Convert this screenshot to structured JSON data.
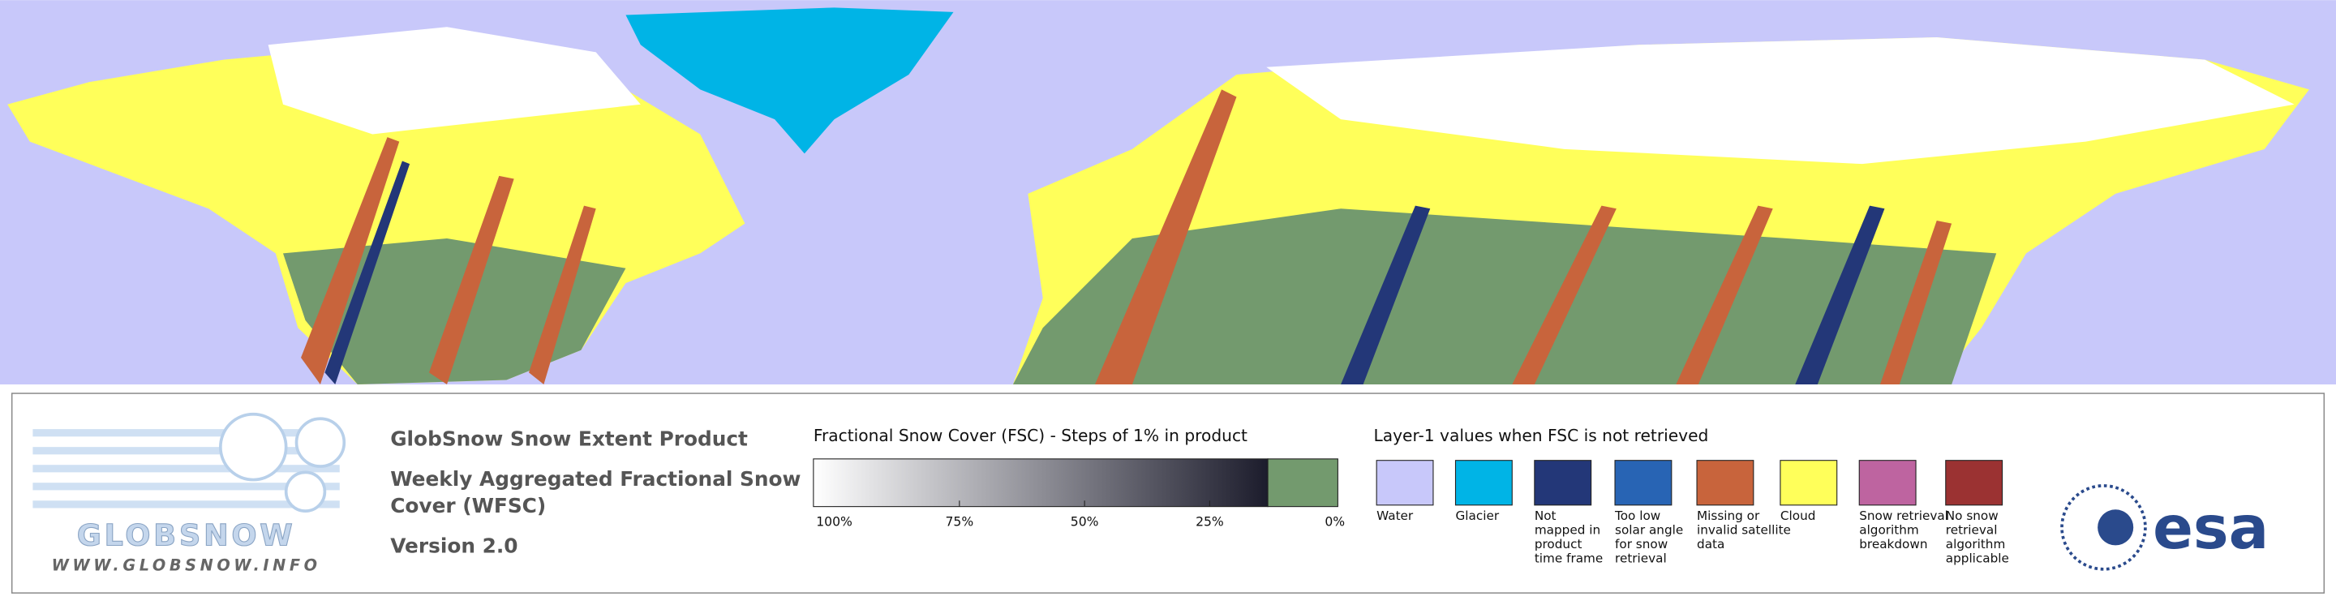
{
  "logo": {
    "name": "GLOBSNOW",
    "url": "WWW.GLOBSNOW.INFO"
  },
  "header": {
    "product": "GlobSnow Snow Extent Product",
    "subtitle_lines": [
      "Weekly Aggregated Fractional Snow",
      "Cover (WFSC)"
    ],
    "version": "Version 2.0"
  },
  "colorbar": {
    "title": "Fractional Snow Cover (FSC) - Steps of 1% in product",
    "ticks": [
      "100%",
      "75%",
      "50%",
      "25%",
      "0%"
    ],
    "start_color": "#ffffff",
    "end_color": "#1c1c2c",
    "zero_color": "#739a6e"
  },
  "layer1": {
    "title": "Layer-1 values when FSC is not retrieved",
    "items": [
      {
        "lines": [
          "Water"
        ],
        "color": "#c8c8fa"
      },
      {
        "lines": [
          "Glacier"
        ],
        "color": "#00b4e6"
      },
      {
        "lines": [
          "Not",
          "mapped in",
          "product",
          "time frame"
        ],
        "color": "#233778"
      },
      {
        "lines": [
          "Too low",
          "solar angle",
          "for snow",
          "retrieval"
        ],
        "color": "#2864b4"
      },
      {
        "lines": [
          "Missing or",
          "invalid satellite",
          "data"
        ],
        "color": "#c8643c"
      },
      {
        "lines": [
          "Cloud"
        ],
        "color": "#ffff5a"
      },
      {
        "lines": [
          "Snow retrieval",
          "algorithm",
          "breakdown"
        ],
        "color": "#be64a0"
      },
      {
        "lines": [
          "No snow",
          "retrieval",
          "algorithm",
          "applicable"
        ],
        "color": "#9b3232"
      }
    ]
  },
  "agency": "esa"
}
